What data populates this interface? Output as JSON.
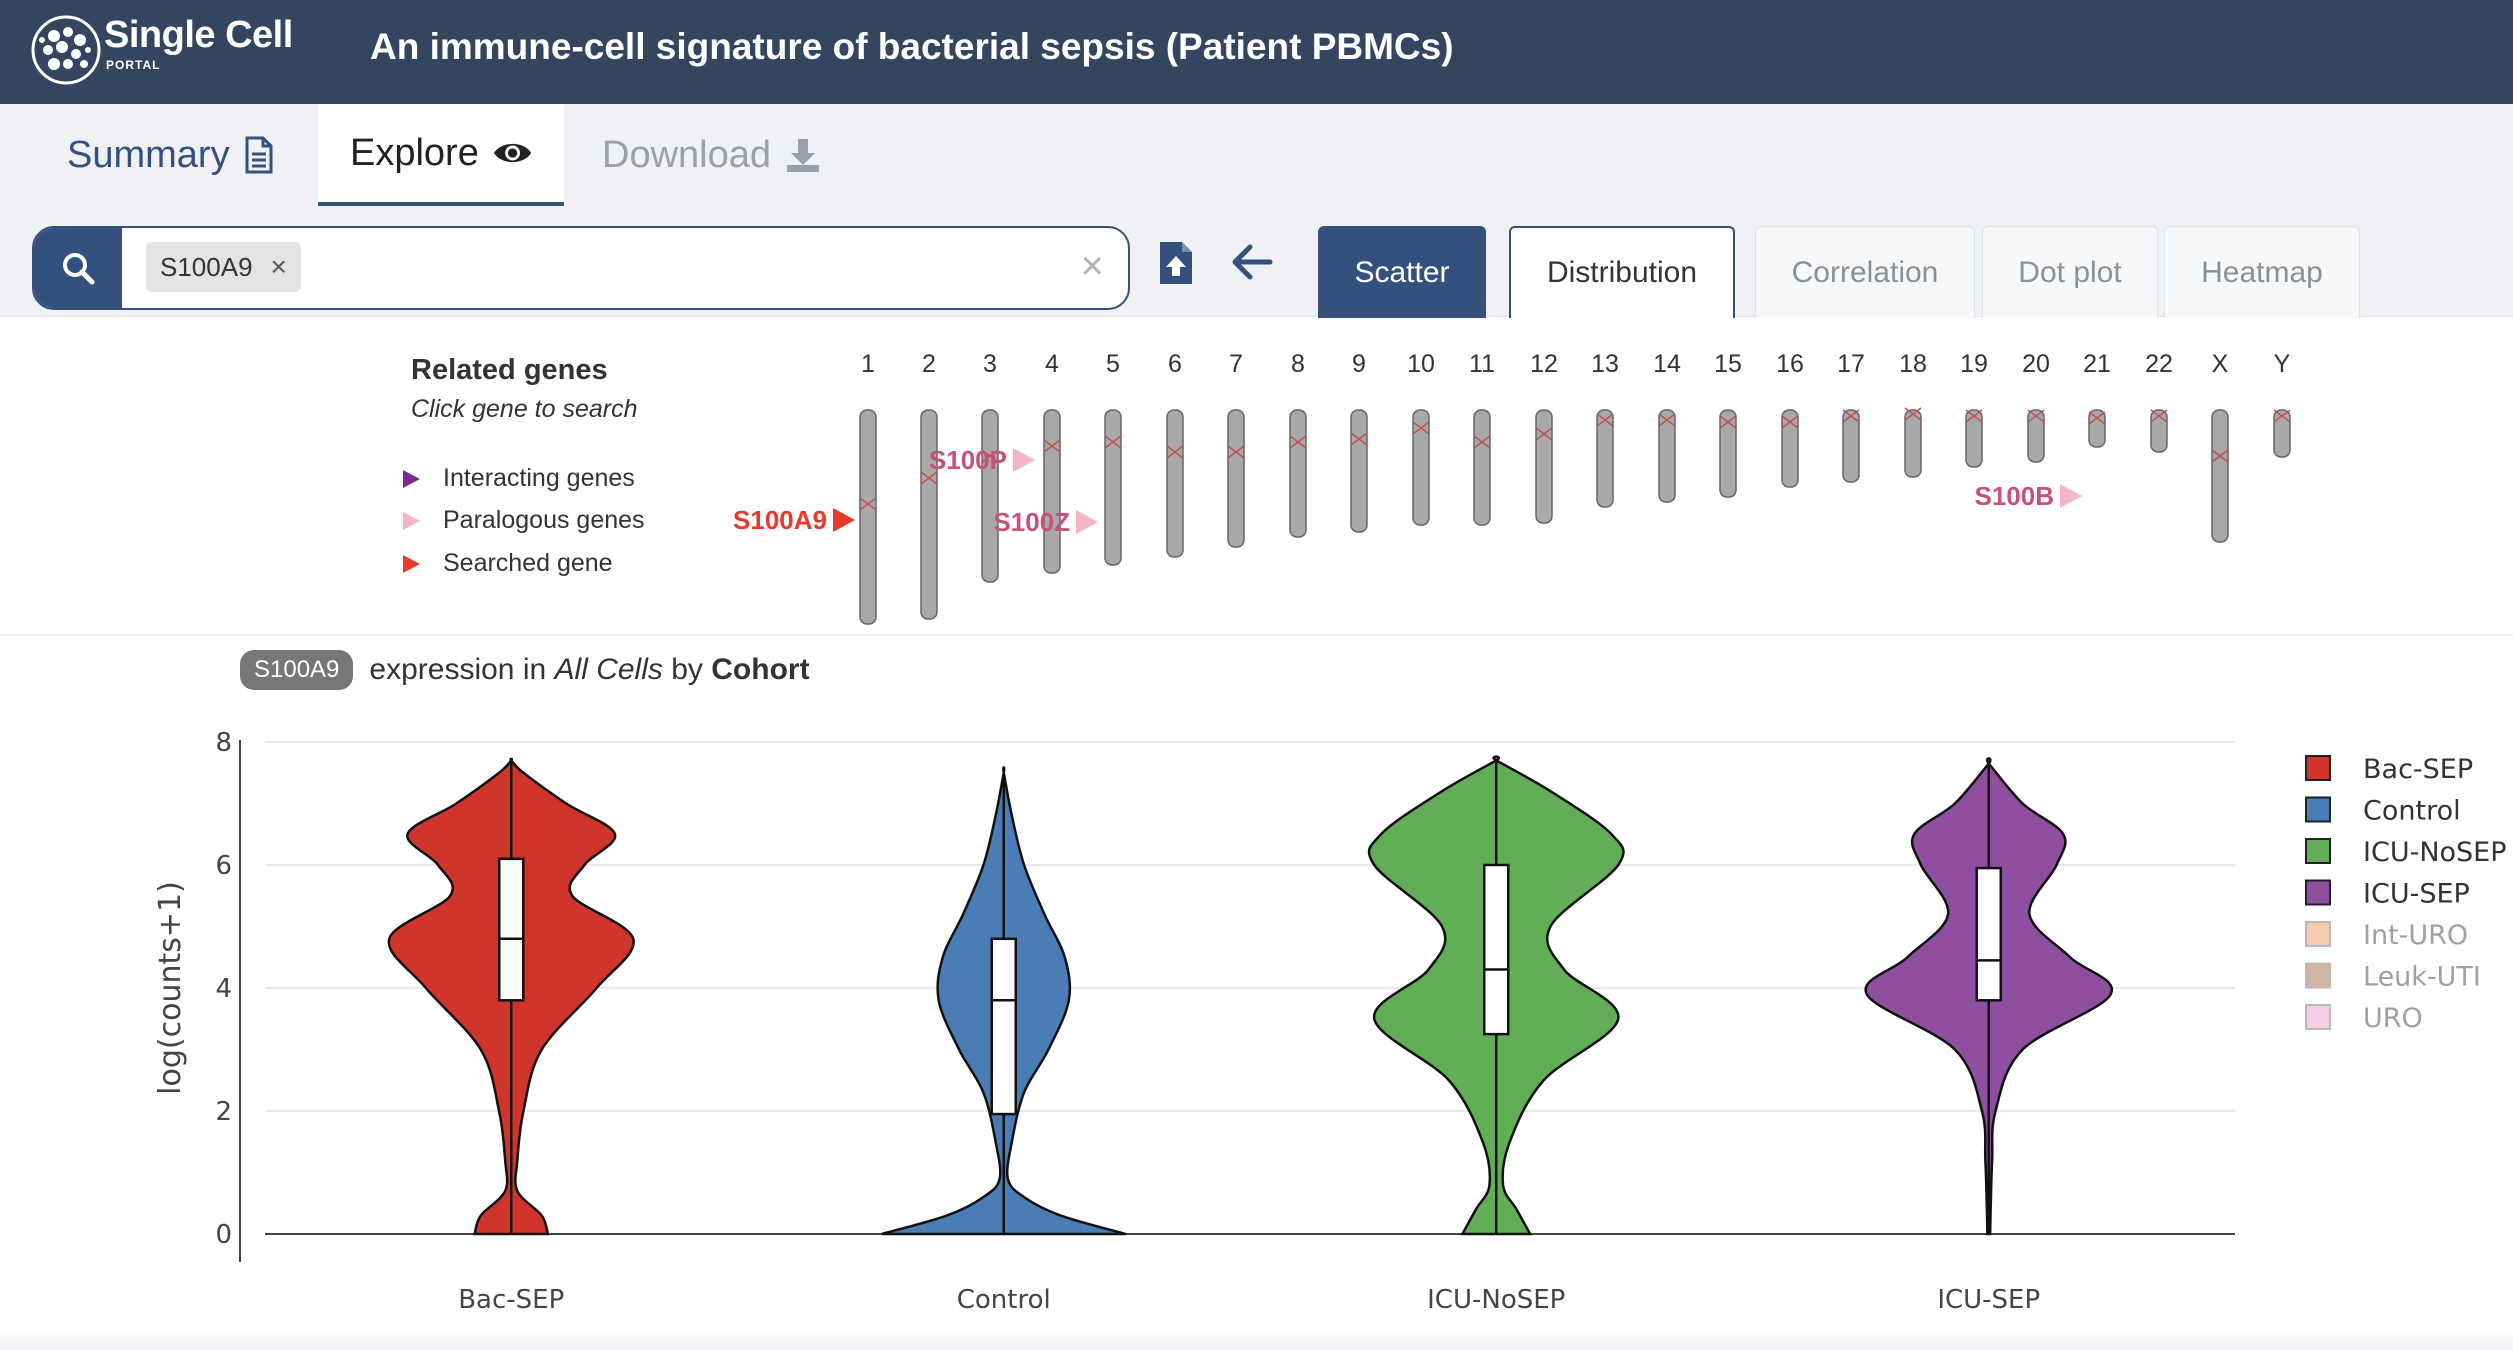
{
  "header": {
    "logo_main": "Single Cell",
    "logo_sub": "PORTAL",
    "study_title": "An immune-cell signature of bacterial sepsis (Patient PBMCs)"
  },
  "nav_tabs": {
    "summary": "Summary",
    "explore": "Explore",
    "download": "Download"
  },
  "search": {
    "gene_chip": "S100A9",
    "chip_remove": "×",
    "clear": "×"
  },
  "plot_tabs": {
    "scatter": "Scatter",
    "distribution": "Distribution",
    "correlation": "Correlation",
    "dotplot": "Dot plot",
    "heatmap": "Heatmap"
  },
  "ideogram": {
    "title": "Related genes",
    "subtitle": "Click gene to search",
    "legend": [
      {
        "label": "Interacting genes",
        "color": "#7a2b8e"
      },
      {
        "label": "Paralogous genes",
        "color": "#f4b6c7"
      },
      {
        "label": "Searched gene",
        "color": "#e8392b"
      }
    ],
    "chromosomes": [
      "1",
      "2",
      "3",
      "4",
      "5",
      "6",
      "7",
      "8",
      "9",
      "10",
      "11",
      "12",
      "13",
      "14",
      "15",
      "16",
      "17",
      "18",
      "19",
      "20",
      "21",
      "22",
      "X",
      "Y"
    ],
    "searched_gene": "S100A9",
    "paralogs": [
      "S100P",
      "S100Z",
      "S100B"
    ]
  },
  "plot_title": {
    "gene": "S100A9",
    "text_pre": "expression in",
    "subset": "All Cells",
    "text_mid": "by",
    "annotation": "Cohort"
  },
  "chart_data": {
    "type": "violin",
    "ylabel": "log(counts+1)",
    "ylim": [
      0,
      8
    ],
    "yticks": [
      0,
      2,
      4,
      6,
      8
    ],
    "categories": [
      "Bac-SEP",
      "Control",
      "ICU-NoSEP",
      "ICU-SEP"
    ],
    "series": [
      {
        "name": "Bac-SEP",
        "color": "#d0352b",
        "median": 4.8,
        "q1": 3.8,
        "q3": 6.1,
        "min": 0,
        "max": 7.7,
        "density": [
          [
            0,
            0.06
          ],
          [
            0.3,
            0.05
          ],
          [
            0.7,
            0.01
          ],
          [
            1.2,
            0.01
          ],
          [
            2.0,
            0.02
          ],
          [
            3.0,
            0.05
          ],
          [
            4.0,
            0.14
          ],
          [
            4.8,
            0.2
          ],
          [
            5.5,
            0.1
          ],
          [
            6.0,
            0.12
          ],
          [
            6.5,
            0.17
          ],
          [
            7.0,
            0.09
          ],
          [
            7.5,
            0.02
          ],
          [
            7.7,
            0.0
          ]
        ]
      },
      {
        "name": "Control",
        "color": "#4a7db6",
        "median": 3.8,
        "q1": 1.95,
        "q3": 4.8,
        "min": 0,
        "max": 7.5,
        "density": [
          [
            0,
            0.3
          ],
          [
            0.3,
            0.14
          ],
          [
            0.6,
            0.05
          ],
          [
            0.9,
            0.01
          ],
          [
            1.5,
            0.02
          ],
          [
            2.3,
            0.05
          ],
          [
            3.0,
            0.11
          ],
          [
            3.8,
            0.16
          ],
          [
            4.5,
            0.15
          ],
          [
            5.2,
            0.1
          ],
          [
            6.0,
            0.05
          ],
          [
            6.8,
            0.02
          ],
          [
            7.5,
            0.0
          ]
        ]
      },
      {
        "name": "ICU-NoSEP",
        "color": "#62ae57",
        "median": 4.3,
        "q1": 3.25,
        "q3": 6.0,
        "min": 0,
        "max": 7.7,
        "density": [
          [
            0,
            0.05
          ],
          [
            0.4,
            0.03
          ],
          [
            0.8,
            0.01
          ],
          [
            1.5,
            0.02
          ],
          [
            2.5,
            0.07
          ],
          [
            3.5,
            0.18
          ],
          [
            4.3,
            0.1
          ],
          [
            5.0,
            0.08
          ],
          [
            6.0,
            0.18
          ],
          [
            6.5,
            0.17
          ],
          [
            7.2,
            0.08
          ],
          [
            7.7,
            0.0
          ]
        ]
      },
      {
        "name": "ICU-SEP",
        "color": "#8f4ea0",
        "median": 4.45,
        "q1": 3.8,
        "q3": 5.95,
        "min": 0,
        "max": 7.65,
        "density": [
          [
            0,
            0.002
          ],
          [
            0.5,
            0.003
          ],
          [
            1.2,
            0.005
          ],
          [
            2.0,
            0.01
          ],
          [
            3.0,
            0.05
          ],
          [
            3.9,
            0.18
          ],
          [
            4.5,
            0.12
          ],
          [
            5.2,
            0.06
          ],
          [
            6.0,
            0.1
          ],
          [
            6.5,
            0.11
          ],
          [
            7.0,
            0.05
          ],
          [
            7.65,
            0.0
          ]
        ]
      }
    ],
    "legend": [
      {
        "name": "Bac-SEP",
        "color": "#d0352b",
        "visible": true
      },
      {
        "name": "Control",
        "color": "#4a7db6",
        "visible": true
      },
      {
        "name": "ICU-NoSEP",
        "color": "#62ae57",
        "visible": true
      },
      {
        "name": "ICU-SEP",
        "color": "#8f4ea0",
        "visible": true
      },
      {
        "name": "Int-URO",
        "color": "#f3c19b",
        "visible": false
      },
      {
        "name": "Leuk-UTI",
        "color": "#c9a58e",
        "visible": false
      },
      {
        "name": "URO",
        "color": "#f2c3de",
        "visible": false
      }
    ]
  }
}
